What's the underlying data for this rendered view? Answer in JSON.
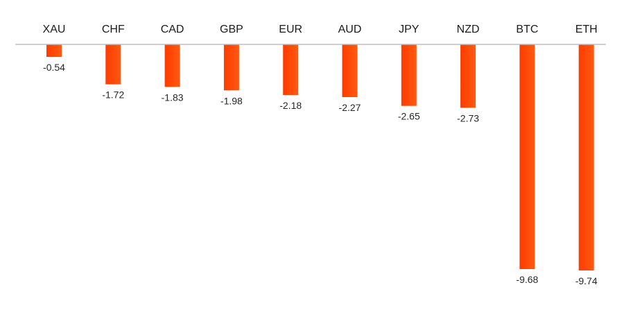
{
  "chart_data": {
    "type": "bar",
    "orientation": "vertical",
    "title": "",
    "xlabel": "",
    "ylabel": "",
    "categories": [
      "XAU",
      "CHF",
      "CAD",
      "GBP",
      "EUR",
      "AUD",
      "JPY",
      "NZD",
      "BTC",
      "ETH"
    ],
    "values": [
      -0.54,
      -1.72,
      -1.83,
      -1.98,
      -2.18,
      -2.27,
      -2.65,
      -2.73,
      -9.68,
      -9.74
    ],
    "data_labels": [
      "-0.54",
      "-1.72",
      "-1.83",
      "-1.98",
      "-2.18",
      "-2.27",
      "-2.65",
      "-2.73",
      "-9.68",
      "-9.74"
    ],
    "ylim": [
      -9.74,
      0
    ],
    "category_axis_position": "top",
    "grid": false,
    "legend": "none",
    "colors": {
      "bar_top": "#ff3b00",
      "bar_bottom": "#ff5a14",
      "axis": "#bfbfbf"
    }
  }
}
